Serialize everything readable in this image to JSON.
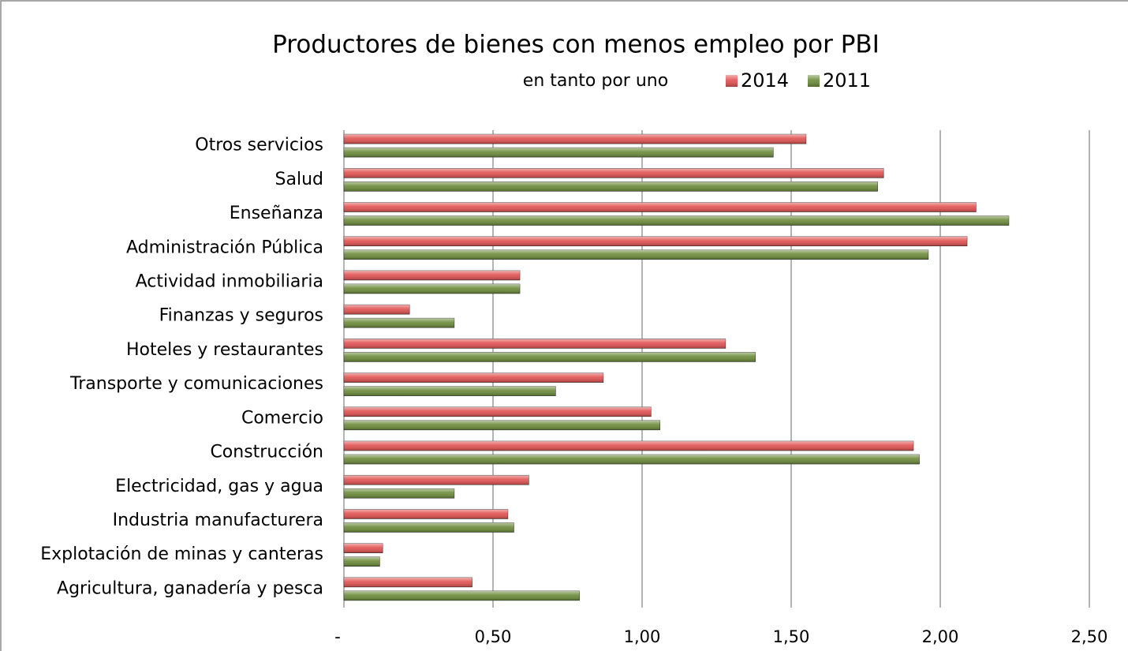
{
  "chart_data": {
    "type": "hbar",
    "title": "Productores de bienes con menos empleo por PBI",
    "subtitle": "en tanto por uno",
    "categories": [
      "Otros servicios",
      "Salud",
      "Enseñanza",
      "Administración Pública",
      "Actividad inmobiliaria",
      "Finanzas y seguros",
      "Hoteles y restaurantes",
      "Transporte y comunicaciones",
      "Comercio",
      "Construcción",
      "Electricidad, gas y agua",
      "Industria manufacturera",
      "Explotación de minas y canteras",
      "Agricultura, ganadería y pesca"
    ],
    "series": [
      {
        "name": "2014",
        "color": "#e0504f",
        "values": [
          1.55,
          1.81,
          2.12,
          2.09,
          0.59,
          0.22,
          1.28,
          0.87,
          1.03,
          1.91,
          0.62,
          0.55,
          0.13,
          0.43
        ]
      },
      {
        "name": "2011",
        "color": "#6a8a37",
        "values": [
          1.44,
          1.79,
          2.23,
          1.96,
          0.59,
          0.37,
          1.38,
          0.71,
          1.06,
          1.93,
          0.37,
          0.57,
          0.12,
          0.79
        ]
      }
    ],
    "xlim": [
      0,
      2.5
    ],
    "xticks": [
      {
        "value": 0,
        "label": "-"
      },
      {
        "value": 0.5,
        "label": "0,50"
      },
      {
        "value": 1,
        "label": "1,00"
      },
      {
        "value": 1.5,
        "label": "1,50"
      },
      {
        "value": 2,
        "label": "2,00"
      },
      {
        "value": 2.5,
        "label": "2,50"
      }
    ],
    "grid": true
  }
}
